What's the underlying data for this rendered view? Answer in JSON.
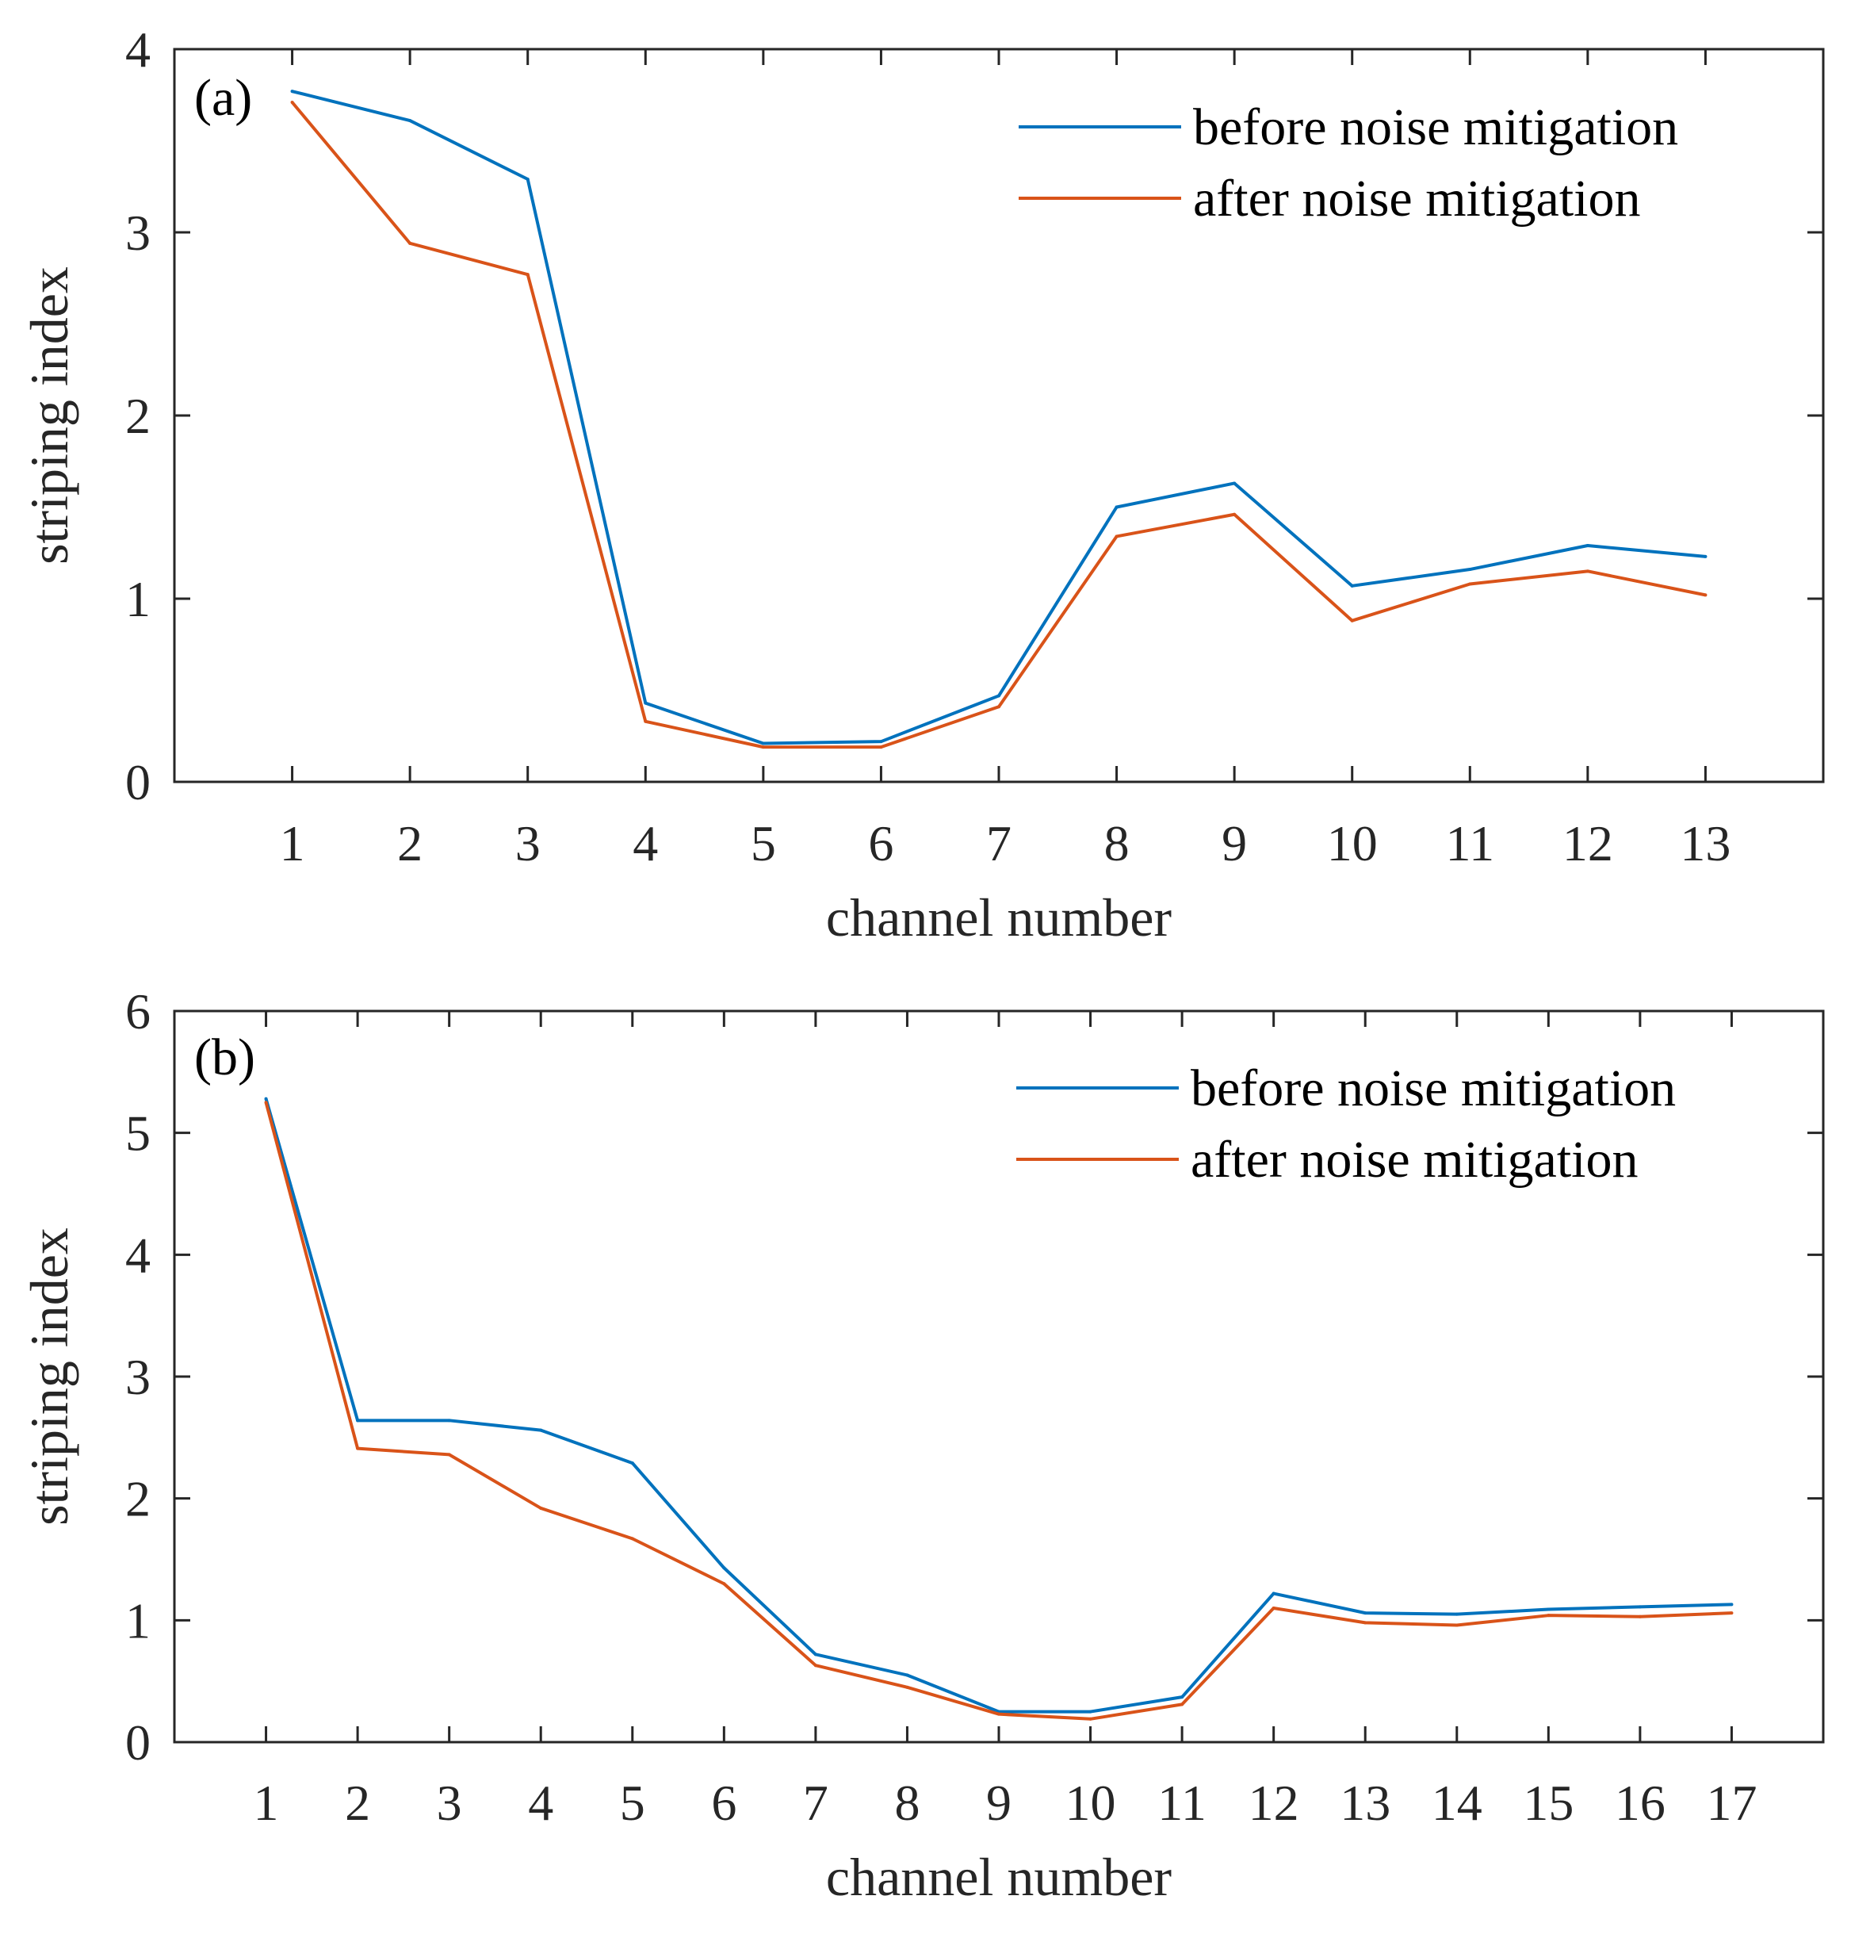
{
  "colors": {
    "before": "#0072BD",
    "after": "#D95319",
    "axis": "#262626"
  },
  "chart_data": [
    {
      "type": "line",
      "panel_label": "(a)",
      "xlabel": "channel number",
      "ylabel": "striping index",
      "x": [
        1,
        2,
        3,
        4,
        5,
        6,
        7,
        8,
        9,
        10,
        11,
        12,
        13
      ],
      "xticks": [
        "1",
        "2",
        "3",
        "4",
        "5",
        "6",
        "7",
        "8",
        "9",
        "10",
        "11",
        "12",
        "13"
      ],
      "xlim": [
        0,
        14
      ],
      "ylim": [
        0,
        4
      ],
      "yticks": [
        "0",
        "1",
        "2",
        "3",
        "4"
      ],
      "legend_position": "top-right",
      "series": [
        {
          "name": "before noise mitigation",
          "color": "#0072BD",
          "values": [
            3.77,
            3.61,
            3.29,
            0.43,
            0.21,
            0.22,
            0.47,
            1.5,
            1.63,
            1.07,
            1.16,
            1.29,
            1.23
          ]
        },
        {
          "name": "after noise mitigation",
          "color": "#D95319",
          "values": [
            3.71,
            2.94,
            2.77,
            0.33,
            0.19,
            0.19,
            0.41,
            1.34,
            1.46,
            0.88,
            1.08,
            1.15,
            1.02
          ]
        }
      ]
    },
    {
      "type": "line",
      "panel_label": "(b)",
      "xlabel": "channel number",
      "ylabel": "striping index",
      "x": [
        1,
        2,
        3,
        4,
        5,
        6,
        7,
        8,
        9,
        10,
        11,
        12,
        13,
        14,
        15,
        16,
        17
      ],
      "xticks": [
        "1",
        "2",
        "3",
        "4",
        "5",
        "6",
        "7",
        "8",
        "9",
        "10",
        "11",
        "12",
        "13",
        "14",
        "15",
        "16",
        "17"
      ],
      "xlim": [
        0,
        18
      ],
      "ylim": [
        0,
        6
      ],
      "yticks": [
        "0",
        "1",
        "2",
        "3",
        "4",
        "5",
        "6"
      ],
      "legend_position": "top-right",
      "series": [
        {
          "name": "before noise mitigation",
          "color": "#0072BD",
          "values": [
            5.28,
            2.64,
            2.64,
            2.56,
            2.29,
            1.43,
            0.72,
            0.55,
            0.25,
            0.25,
            0.37,
            1.22,
            1.06,
            1.05,
            1.09,
            1.11,
            1.13
          ]
        },
        {
          "name": "after noise mitigation",
          "color": "#D95319",
          "values": [
            5.25,
            2.41,
            2.36,
            1.92,
            1.67,
            1.3,
            0.63,
            0.45,
            0.23,
            0.19,
            0.31,
            1.1,
            0.98,
            0.96,
            1.04,
            1.03,
            1.06
          ]
        }
      ]
    }
  ]
}
